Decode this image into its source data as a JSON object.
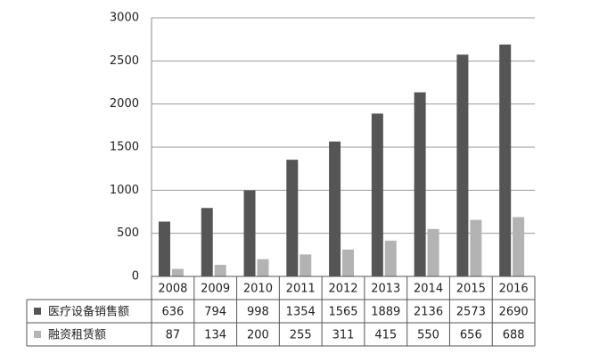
{
  "chart_data": {
    "type": "bar",
    "categories": [
      "2008",
      "2009",
      "2010",
      "2011",
      "2012",
      "2013",
      "2014",
      "2015",
      "2016"
    ],
    "series": [
      {
        "name": "医疗设备销售额",
        "color": "#555555",
        "values": [
          636,
          794,
          998,
          1354,
          1565,
          1889,
          2136,
          2573,
          2690
        ]
      },
      {
        "name": "融资租赁额",
        "color": "#b3b3b3",
        "values": [
          87,
          134,
          200,
          255,
          311,
          415,
          550,
          656,
          688
        ]
      }
    ],
    "ylim": [
      0,
      3000
    ],
    "yticks": [
      0,
      500,
      1000,
      1500,
      2000,
      2500,
      3000
    ],
    "grid": true
  }
}
